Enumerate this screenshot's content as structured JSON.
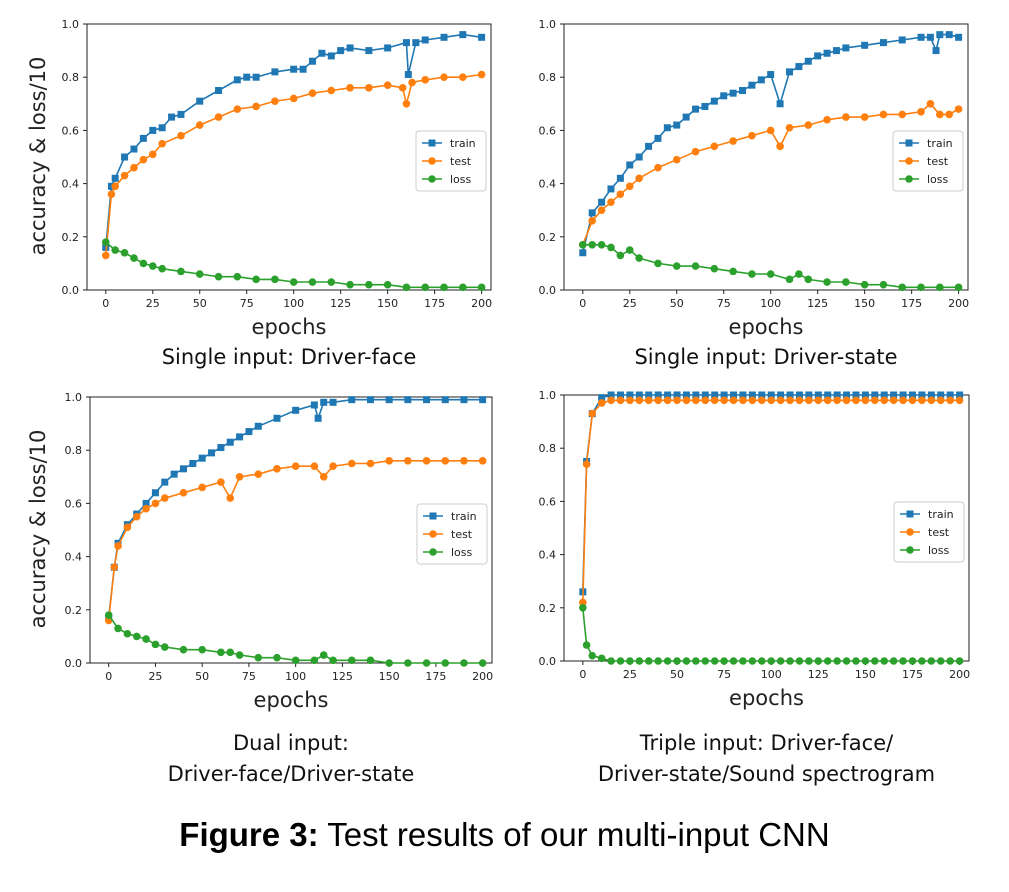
{
  "figure_caption": {
    "label": "Figure 3:",
    "text": "Test results of our multi-input CNN"
  },
  "colors": {
    "train": "#1f77b4",
    "test": "#ff7f0e",
    "loss": "#2ca02c"
  },
  "chart_data": [
    {
      "type": "line",
      "subtitle": "Single input: Driver-face",
      "xlabel": "epochs",
      "ylabel": "accuracy & loss/10",
      "xlim": [
        -10,
        205
      ],
      "ylim": [
        0,
        1.0
      ],
      "xticks": [
        "0",
        "25",
        "50",
        "75",
        "100",
        "125",
        "150",
        "175",
        "200"
      ],
      "yticks": [
        "0.0",
        "0.2",
        "0.4",
        "0.6",
        "0.8",
        "1.0"
      ],
      "legend": "center-right",
      "grid": false,
      "series": [
        {
          "name": "train",
          "marker": "square",
          "x": [
            0,
            3,
            5,
            10,
            15,
            20,
            25,
            30,
            35,
            40,
            50,
            60,
            70,
            75,
            80,
            90,
            100,
            105,
            110,
            115,
            120,
            125,
            130,
            140,
            150,
            160,
            161,
            165,
            170,
            180,
            190,
            200
          ],
          "y": [
            0.16,
            0.39,
            0.42,
            0.5,
            0.53,
            0.57,
            0.6,
            0.61,
            0.65,
            0.66,
            0.71,
            0.75,
            0.79,
            0.8,
            0.8,
            0.82,
            0.83,
            0.83,
            0.86,
            0.89,
            0.88,
            0.9,
            0.91,
            0.9,
            0.91,
            0.93,
            0.81,
            0.93,
            0.94,
            0.95,
            0.96,
            0.95
          ]
        },
        {
          "name": "test",
          "marker": "circle",
          "x": [
            0,
            3,
            5,
            10,
            15,
            20,
            25,
            30,
            40,
            50,
            60,
            70,
            80,
            90,
            100,
            110,
            120,
            130,
            140,
            150,
            158,
            160,
            163,
            170,
            180,
            190,
            200
          ],
          "y": [
            0.13,
            0.36,
            0.39,
            0.43,
            0.46,
            0.49,
            0.51,
            0.55,
            0.58,
            0.62,
            0.65,
            0.68,
            0.69,
            0.71,
            0.72,
            0.74,
            0.75,
            0.76,
            0.76,
            0.77,
            0.76,
            0.7,
            0.78,
            0.79,
            0.8,
            0.8,
            0.81
          ]
        },
        {
          "name": "loss",
          "marker": "circle",
          "x": [
            0,
            5,
            10,
            15,
            20,
            25,
            30,
            40,
            50,
            60,
            70,
            80,
            90,
            100,
            110,
            120,
            130,
            140,
            150,
            160,
            170,
            180,
            190,
            200
          ],
          "y": [
            0.18,
            0.15,
            0.14,
            0.12,
            0.1,
            0.09,
            0.08,
            0.07,
            0.06,
            0.05,
            0.05,
            0.04,
            0.04,
            0.03,
            0.03,
            0.03,
            0.02,
            0.02,
            0.02,
            0.01,
            0.01,
            0.01,
            0.01,
            0.01
          ]
        }
      ]
    },
    {
      "type": "line",
      "subtitle": "Single input: Driver-state",
      "xlabel": "epochs",
      "ylabel": "",
      "xlim": [
        -10,
        205
      ],
      "ylim": [
        0,
        1.0
      ],
      "xticks": [
        "0",
        "25",
        "50",
        "75",
        "100",
        "125",
        "150",
        "175",
        "200"
      ],
      "yticks": [
        "0.0",
        "0.2",
        "0.4",
        "0.6",
        "0.8",
        "1.0"
      ],
      "legend": "center-right",
      "grid": false,
      "series": [
        {
          "name": "train",
          "marker": "square",
          "x": [
            0,
            5,
            10,
            15,
            20,
            25,
            30,
            35,
            40,
            45,
            50,
            55,
            60,
            65,
            70,
            75,
            80,
            85,
            90,
            95,
            100,
            105,
            110,
            115,
            120,
            125,
            130,
            135,
            140,
            150,
            160,
            170,
            180,
            185,
            188,
            190,
            195,
            200
          ],
          "y": [
            0.14,
            0.29,
            0.33,
            0.38,
            0.42,
            0.47,
            0.5,
            0.54,
            0.57,
            0.61,
            0.62,
            0.65,
            0.68,
            0.69,
            0.71,
            0.73,
            0.74,
            0.75,
            0.77,
            0.79,
            0.81,
            0.7,
            0.82,
            0.84,
            0.86,
            0.88,
            0.89,
            0.9,
            0.91,
            0.92,
            0.93,
            0.94,
            0.95,
            0.95,
            0.9,
            0.96,
            0.96,
            0.95
          ]
        },
        {
          "name": "test",
          "marker": "circle",
          "x": [
            0,
            5,
            10,
            15,
            20,
            25,
            30,
            40,
            50,
            60,
            70,
            80,
            90,
            100,
            105,
            110,
            120,
            130,
            140,
            150,
            160,
            170,
            180,
            185,
            190,
            195,
            200
          ],
          "y": [
            0.17,
            0.26,
            0.3,
            0.33,
            0.36,
            0.39,
            0.42,
            0.46,
            0.49,
            0.52,
            0.54,
            0.56,
            0.58,
            0.6,
            0.54,
            0.61,
            0.62,
            0.64,
            0.65,
            0.65,
            0.66,
            0.66,
            0.67,
            0.7,
            0.66,
            0.66,
            0.68
          ]
        },
        {
          "name": "loss",
          "marker": "circle",
          "x": [
            0,
            5,
            10,
            15,
            20,
            25,
            30,
            40,
            50,
            60,
            70,
            80,
            90,
            100,
            110,
            115,
            120,
            130,
            140,
            150,
            160,
            170,
            180,
            190,
            200
          ],
          "y": [
            0.17,
            0.17,
            0.17,
            0.16,
            0.13,
            0.15,
            0.12,
            0.1,
            0.09,
            0.09,
            0.08,
            0.07,
            0.06,
            0.06,
            0.04,
            0.06,
            0.04,
            0.03,
            0.03,
            0.02,
            0.02,
            0.01,
            0.01,
            0.01,
            0.01
          ]
        }
      ]
    },
    {
      "type": "line",
      "subtitle": "Dual input: Driver-face/Driver-state",
      "xlabel": "epochs",
      "ylabel": "accuracy & loss/10",
      "xlim": [
        -10,
        205
      ],
      "ylim": [
        0,
        1.0
      ],
      "xticks": [
        "0",
        "25",
        "50",
        "75",
        "100",
        "125",
        "150",
        "175",
        "200"
      ],
      "yticks": [
        "0.0",
        "0.2",
        "0.4",
        "0.6",
        "0.8",
        "1.0"
      ],
      "legend": "center-right",
      "grid": false,
      "series": [
        {
          "name": "train",
          "marker": "square",
          "x": [
            0,
            3,
            5,
            10,
            15,
            20,
            25,
            30,
            35,
            40,
            45,
            50,
            55,
            60,
            65,
            70,
            75,
            80,
            90,
            100,
            110,
            112,
            115,
            120,
            130,
            140,
            150,
            160,
            170,
            180,
            190,
            200
          ],
          "y": [
            0.17,
            0.36,
            0.45,
            0.52,
            0.56,
            0.6,
            0.64,
            0.68,
            0.71,
            0.73,
            0.75,
            0.77,
            0.79,
            0.81,
            0.83,
            0.85,
            0.87,
            0.89,
            0.92,
            0.95,
            0.97,
            0.92,
            0.98,
            0.98,
            0.99,
            0.99,
            0.99,
            0.99,
            0.99,
            0.99,
            0.99,
            0.99
          ]
        },
        {
          "name": "test",
          "marker": "circle",
          "x": [
            0,
            3,
            5,
            10,
            15,
            20,
            25,
            30,
            40,
            50,
            60,
            65,
            70,
            80,
            90,
            100,
            110,
            115,
            120,
            130,
            140,
            150,
            160,
            170,
            180,
            190,
            200
          ],
          "y": [
            0.16,
            0.36,
            0.44,
            0.51,
            0.55,
            0.58,
            0.6,
            0.62,
            0.64,
            0.66,
            0.68,
            0.62,
            0.7,
            0.71,
            0.73,
            0.74,
            0.74,
            0.7,
            0.74,
            0.75,
            0.75,
            0.76,
            0.76,
            0.76,
            0.76,
            0.76,
            0.76
          ]
        },
        {
          "name": "loss",
          "marker": "circle",
          "x": [
            0,
            5,
            10,
            15,
            20,
            25,
            30,
            40,
            50,
            60,
            65,
            70,
            80,
            90,
            100,
            110,
            115,
            120,
            130,
            140,
            150,
            160,
            170,
            180,
            190,
            200
          ],
          "y": [
            0.18,
            0.13,
            0.11,
            0.1,
            0.09,
            0.07,
            0.06,
            0.05,
            0.05,
            0.04,
            0.04,
            0.03,
            0.02,
            0.02,
            0.01,
            0.01,
            0.03,
            0.01,
            0.01,
            0.01,
            0.0,
            0.0,
            0.0,
            0.0,
            0.0,
            0.0
          ]
        }
      ]
    },
    {
      "type": "line",
      "subtitle": "Triple input: Driver-face/Driver-state/Sound spectrogram",
      "xlabel": "epochs",
      "ylabel": "",
      "xlim": [
        -10,
        205
      ],
      "ylim": [
        0,
        1.0
      ],
      "xticks": [
        "0",
        "25",
        "50",
        "75",
        "100",
        "125",
        "150",
        "175",
        "200"
      ],
      "yticks": [
        "0.0",
        "0.2",
        "0.4",
        "0.6",
        "0.8",
        "1.0"
      ],
      "legend": "center-right",
      "grid": false,
      "series": [
        {
          "name": "train",
          "marker": "square",
          "x": [
            0,
            2,
            5,
            10,
            15,
            20,
            25,
            30,
            35,
            40,
            45,
            50,
            55,
            60,
            65,
            70,
            75,
            80,
            85,
            90,
            95,
            100,
            105,
            110,
            115,
            120,
            125,
            130,
            135,
            140,
            145,
            150,
            155,
            160,
            165,
            170,
            175,
            180,
            185,
            190,
            195,
            200
          ],
          "y": [
            0.26,
            0.75,
            0.93,
            0.99,
            1.0,
            1.0,
            1.0,
            1.0,
            1.0,
            1.0,
            1.0,
            1.0,
            1.0,
            1.0,
            1.0,
            1.0,
            1.0,
            1.0,
            1.0,
            1.0,
            1.0,
            1.0,
            1.0,
            1.0,
            1.0,
            1.0,
            1.0,
            1.0,
            1.0,
            1.0,
            1.0,
            1.0,
            1.0,
            1.0,
            1.0,
            1.0,
            1.0,
            1.0,
            1.0,
            1.0,
            1.0,
            1.0
          ]
        },
        {
          "name": "test",
          "marker": "circle",
          "x": [
            0,
            2,
            5,
            10,
            15,
            20,
            25,
            30,
            35,
            40,
            45,
            50,
            55,
            60,
            65,
            70,
            75,
            80,
            85,
            90,
            95,
            100,
            105,
            110,
            115,
            120,
            125,
            130,
            135,
            140,
            145,
            150,
            155,
            160,
            165,
            170,
            175,
            180,
            185,
            190,
            195,
            200
          ],
          "y": [
            0.22,
            0.74,
            0.93,
            0.97,
            0.98,
            0.98,
            0.98,
            0.98,
            0.98,
            0.98,
            0.98,
            0.98,
            0.98,
            0.98,
            0.98,
            0.98,
            0.98,
            0.98,
            0.98,
            0.98,
            0.98,
            0.98,
            0.98,
            0.98,
            0.98,
            0.98,
            0.98,
            0.98,
            0.98,
            0.98,
            0.98,
            0.98,
            0.98,
            0.98,
            0.98,
            0.98,
            0.98,
            0.98,
            0.98,
            0.98,
            0.98,
            0.98
          ]
        },
        {
          "name": "loss",
          "marker": "circle",
          "x": [
            0,
            2,
            5,
            10,
            15,
            20,
            25,
            30,
            35,
            40,
            45,
            50,
            55,
            60,
            65,
            70,
            75,
            80,
            85,
            90,
            95,
            100,
            105,
            110,
            115,
            120,
            125,
            130,
            135,
            140,
            145,
            150,
            155,
            160,
            165,
            170,
            175,
            180,
            185,
            190,
            195,
            200
          ],
          "y": [
            0.2,
            0.06,
            0.02,
            0.01,
            0.0,
            0.0,
            0.0,
            0.0,
            0.0,
            0.0,
            0.0,
            0.0,
            0.0,
            0.0,
            0.0,
            0.0,
            0.0,
            0.0,
            0.0,
            0.0,
            0.0,
            0.0,
            0.0,
            0.0,
            0.0,
            0.0,
            0.0,
            0.0,
            0.0,
            0.0,
            0.0,
            0.0,
            0.0,
            0.0,
            0.0,
            0.0,
            0.0,
            0.0,
            0.0,
            0.0,
            0.0,
            0.0
          ]
        }
      ]
    }
  ],
  "subcaptions": [
    {
      "lines": [
        "Single input: Driver-face"
      ]
    },
    {
      "lines": [
        "Single input: Driver-state"
      ]
    },
    {
      "lines": [
        "Dual input:",
        "Driver-face/Driver-state"
      ]
    },
    {
      "lines": [
        "Triple input: Driver-face/",
        "Driver-state/Sound spectrogram"
      ]
    }
  ]
}
